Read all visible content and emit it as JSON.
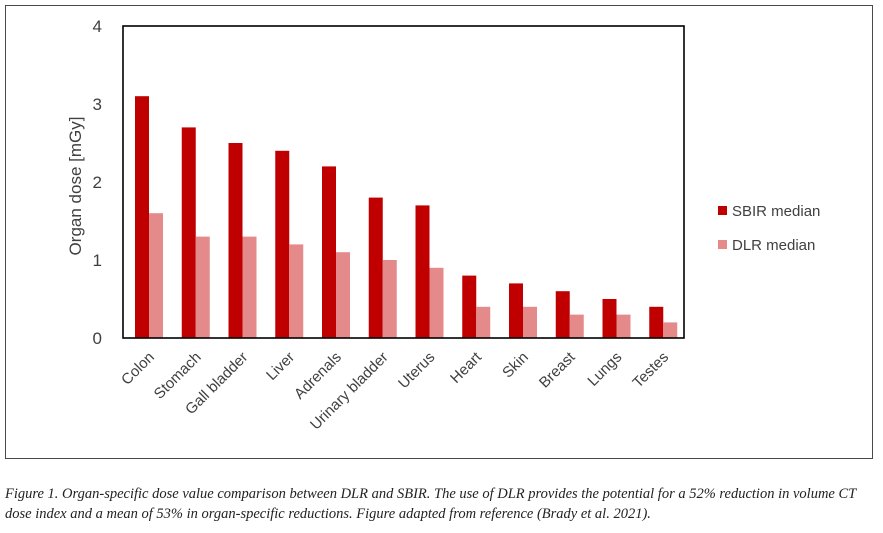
{
  "chart_data": {
    "type": "bar",
    "title": "",
    "xlabel": "",
    "ylabel": "Organ dose [mGy]",
    "ylim": [
      0,
      4
    ],
    "yticks": [
      "0",
      "1",
      "2",
      "3",
      "4"
    ],
    "grid": false,
    "legend_position": "right",
    "categories": [
      "Colon",
      "Stomach",
      "Gall bladder",
      "Liver",
      "Adrenals",
      "Urinary bladder",
      "Uterus",
      "Heart",
      "Skin",
      "Breast",
      "Lungs",
      "Testes"
    ],
    "series": [
      {
        "name": "SBIR median",
        "color": "#c00000",
        "values": [
          3.1,
          2.7,
          2.5,
          2.4,
          2.2,
          1.8,
          1.7,
          0.8,
          0.7,
          0.6,
          0.5,
          0.4
        ]
      },
      {
        "name": "DLR median",
        "color": "#e48a8a",
        "values": [
          1.6,
          1.3,
          1.3,
          1.2,
          1.1,
          1.0,
          0.9,
          0.4,
          0.4,
          0.3,
          0.3,
          0.2
        ]
      }
    ]
  },
  "caption": "Figure 1. Organ-specific dose value comparison between DLR and SBIR. The use of DLR provides the potential for a 52% reduction in volume CT dose index and a mean of 53% in organ-specific reductions. Figure adapted from reference (Brady et al. 2021)."
}
